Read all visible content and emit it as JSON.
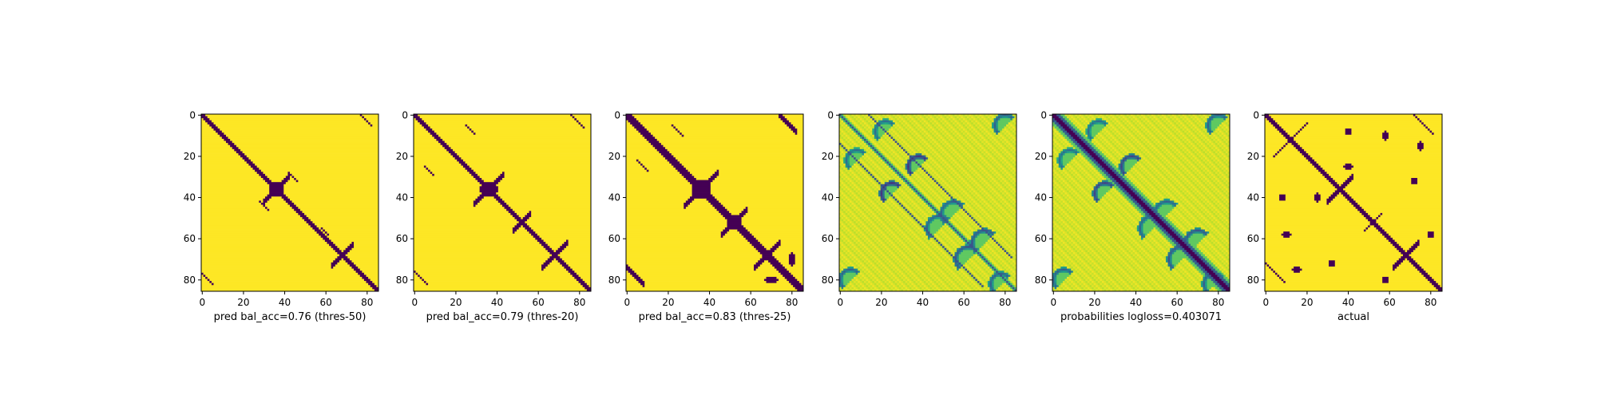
{
  "colors": {
    "background": "#ffffff",
    "zero": "#440154",
    "one": "#fde725",
    "axis": "#000000"
  },
  "chart_data": [
    {
      "type": "heatmap",
      "colormap": "viridis",
      "mode": "binary",
      "xlabel": "pred bal_acc=0.76 (thres-50)",
      "ylabel": "",
      "xlim": [
        0,
        85
      ],
      "ylim": [
        85,
        0
      ],
      "xticks": [
        0,
        20,
        40,
        60,
        80
      ],
      "yticks": [
        0,
        20,
        40,
        60,
        80
      ],
      "matrix_size": 86,
      "diagonal_band_halfwidth": 1.5,
      "features": [
        {
          "kind": "band",
          "row": 0,
          "col": 77,
          "len": 6,
          "halfwidth": 0.8
        },
        {
          "kind": "band",
          "row": 77,
          "col": 0,
          "len": 6,
          "halfwidth": 0.8
        },
        {
          "kind": "anti",
          "r": 36,
          "c": 36,
          "len": 6,
          "halfwidth": 1.0
        },
        {
          "kind": "blob",
          "r": 36,
          "c": 36,
          "rx": 3,
          "ry": 3
        },
        {
          "kind": "anti",
          "r": 68,
          "c": 68,
          "len": 5,
          "halfwidth": 1.0
        },
        {
          "kind": "band",
          "row": 42,
          "col": 28,
          "len": 5,
          "halfwidth": 0.6
        },
        {
          "kind": "band",
          "row": 28,
          "col": 42,
          "len": 5,
          "halfwidth": 0.6
        },
        {
          "kind": "band",
          "row": 55,
          "col": 58,
          "len": 4,
          "halfwidth": 0.6
        }
      ]
    },
    {
      "type": "heatmap",
      "colormap": "viridis",
      "mode": "binary",
      "xlabel": "pred bal_acc=0.79 (thres-20)",
      "ylabel": "",
      "xlim": [
        0,
        85
      ],
      "ylim": [
        85,
        0
      ],
      "xticks": [
        0,
        20,
        40,
        60,
        80
      ],
      "yticks": [
        0,
        20,
        40,
        60,
        80
      ],
      "matrix_size": 86,
      "diagonal_band_halfwidth": 1.8,
      "features": [
        {
          "kind": "band",
          "row": 0,
          "col": 76,
          "len": 7,
          "halfwidth": 0.9
        },
        {
          "kind": "band",
          "row": 76,
          "col": 0,
          "len": 7,
          "halfwidth": 0.9
        },
        {
          "kind": "anti",
          "r": 36,
          "c": 36,
          "len": 7,
          "halfwidth": 1.2
        },
        {
          "kind": "blob",
          "r": 36,
          "c": 36,
          "rx": 4,
          "ry": 3
        },
        {
          "kind": "anti",
          "r": 68,
          "c": 68,
          "len": 6,
          "halfwidth": 1.2
        },
        {
          "kind": "anti",
          "r": 52,
          "c": 52,
          "len": 4,
          "halfwidth": 1.0
        },
        {
          "kind": "band",
          "row": 5,
          "col": 25,
          "len": 5,
          "halfwidth": 0.6
        },
        {
          "kind": "band",
          "row": 25,
          "col": 5,
          "len": 5,
          "halfwidth": 0.6
        }
      ]
    },
    {
      "type": "heatmap",
      "colormap": "viridis",
      "mode": "binary",
      "xlabel": "pred bal_acc=0.83 (thres-25)",
      "ylabel": "",
      "xlim": [
        0,
        85
      ],
      "ylim": [
        85,
        0
      ],
      "xticks": [
        0,
        20,
        40,
        60,
        80
      ],
      "yticks": [
        0,
        20,
        40,
        60,
        80
      ],
      "matrix_size": 86,
      "diagonal_band_halfwidth": 2.0,
      "features": [
        {
          "kind": "band",
          "row": 0,
          "col": 74,
          "len": 9,
          "halfwidth": 1.0
        },
        {
          "kind": "band",
          "row": 74,
          "col": 0,
          "len": 9,
          "halfwidth": 1.0
        },
        {
          "kind": "anti",
          "r": 36,
          "c": 36,
          "len": 8,
          "halfwidth": 1.3
        },
        {
          "kind": "blob",
          "r": 36,
          "c": 36,
          "rx": 4,
          "ry": 4
        },
        {
          "kind": "anti",
          "r": 52,
          "c": 52,
          "len": 6,
          "halfwidth": 1.3
        },
        {
          "kind": "blob",
          "r": 52,
          "c": 52,
          "rx": 3,
          "ry": 3
        },
        {
          "kind": "anti",
          "r": 68,
          "c": 68,
          "len": 6,
          "halfwidth": 1.3
        },
        {
          "kind": "band",
          "row": 5,
          "col": 22,
          "len": 6,
          "halfwidth": 0.7
        },
        {
          "kind": "band",
          "row": 22,
          "col": 5,
          "len": 6,
          "halfwidth": 0.7
        },
        {
          "kind": "blob",
          "r": 70,
          "c": 80,
          "rx": 1,
          "ry": 3
        },
        {
          "kind": "blob",
          "r": 80,
          "c": 70,
          "rx": 3,
          "ry": 1
        }
      ]
    },
    {
      "type": "heatmap",
      "colormap": "viridis",
      "mode": "continuous",
      "xlabel": "",
      "ylabel": "",
      "xlim": [
        0,
        85
      ],
      "ylim": [
        85,
        0
      ],
      "xticks": [
        0,
        20,
        40,
        60,
        80
      ],
      "yticks": [
        0,
        20,
        40,
        60,
        80
      ],
      "matrix_size": 86,
      "diagonal": "thin",
      "features": [
        {
          "kind": "band",
          "row": 0,
          "col": 14,
          "len": 70,
          "halfwidth": 0.6,
          "value": 0.25
        },
        {
          "kind": "band",
          "row": 14,
          "col": 0,
          "len": 70,
          "halfwidth": 0.6,
          "value": 0.25
        },
        {
          "kind": "arc",
          "r": 8,
          "c": 22,
          "rad": 5,
          "value": 0.35
        },
        {
          "kind": "arc",
          "r": 22,
          "c": 8,
          "rad": 5,
          "value": 0.35
        },
        {
          "kind": "arc",
          "r": 38,
          "c": 25,
          "rad": 5,
          "value": 0.15
        },
        {
          "kind": "arc",
          "r": 25,
          "c": 38,
          "rad": 5,
          "value": 0.15
        },
        {
          "kind": "arc",
          "r": 48,
          "c": 55,
          "rad": 6,
          "value": 0.3
        },
        {
          "kind": "arc",
          "r": 55,
          "c": 48,
          "rad": 6,
          "value": 0.3
        },
        {
          "kind": "arc",
          "r": 70,
          "c": 62,
          "rad": 6,
          "value": 0.25
        },
        {
          "kind": "arc",
          "r": 62,
          "c": 70,
          "rad": 6,
          "value": 0.25
        },
        {
          "kind": "arc",
          "r": 80,
          "c": 5,
          "rad": 5,
          "value": 0.3
        },
        {
          "kind": "arc",
          "r": 5,
          "c": 80,
          "rad": 5,
          "value": 0.3
        },
        {
          "kind": "arc",
          "r": 82,
          "c": 78,
          "rad": 5,
          "value": 0.3
        }
      ]
    },
    {
      "type": "heatmap",
      "colormap": "viridis",
      "mode": "continuous",
      "xlabel": "probabilities logloss=0.403071",
      "ylabel": "",
      "xlim": [
        0,
        85
      ],
      "ylim": [
        85,
        0
      ],
      "xticks": [
        0,
        20,
        40,
        60,
        80
      ],
      "yticks": [
        0,
        20,
        40,
        60,
        80
      ],
      "matrix_size": 86,
      "diagonal": "thick",
      "features": [
        {
          "kind": "arc",
          "r": 8,
          "c": 22,
          "rad": 5,
          "value": 0.35
        },
        {
          "kind": "arc",
          "r": 22,
          "c": 8,
          "rad": 5,
          "value": 0.35
        },
        {
          "kind": "arc",
          "r": 38,
          "c": 25,
          "rad": 5,
          "value": 0.2
        },
        {
          "kind": "arc",
          "r": 25,
          "c": 38,
          "rad": 5,
          "value": 0.2
        },
        {
          "kind": "arc",
          "r": 48,
          "c": 55,
          "rad": 6,
          "value": 0.3
        },
        {
          "kind": "arc",
          "r": 55,
          "c": 48,
          "rad": 6,
          "value": 0.3
        },
        {
          "kind": "arc",
          "r": 70,
          "c": 62,
          "rad": 6,
          "value": 0.25
        },
        {
          "kind": "arc",
          "r": 62,
          "c": 70,
          "rad": 6,
          "value": 0.25
        },
        {
          "kind": "arc",
          "r": 80,
          "c": 5,
          "rad": 5,
          "value": 0.3
        },
        {
          "kind": "arc",
          "r": 5,
          "c": 80,
          "rad": 5,
          "value": 0.3
        },
        {
          "kind": "arc",
          "r": 82,
          "c": 78,
          "rad": 5,
          "value": 0.3
        }
      ]
    },
    {
      "type": "heatmap",
      "colormap": "viridis",
      "mode": "binary",
      "xlabel": "actual",
      "ylabel": "",
      "xlim": [
        0,
        85
      ],
      "ylim": [
        85,
        0
      ],
      "xticks": [
        0,
        20,
        40,
        60,
        80
      ],
      "yticks": [
        0,
        20,
        40,
        60,
        80
      ],
      "matrix_size": 86,
      "diagonal_band_halfwidth": 1.5,
      "features": [
        {
          "kind": "band",
          "row": 0,
          "col": 72,
          "len": 10,
          "halfwidth": 0.8
        },
        {
          "kind": "band",
          "row": 72,
          "col": 0,
          "len": 10,
          "halfwidth": 0.8
        },
        {
          "kind": "anti",
          "r": 12,
          "c": 12,
          "len": 8,
          "halfwidth": 0.9
        },
        {
          "kind": "anti",
          "r": 36,
          "c": 36,
          "len": 6,
          "halfwidth": 1.0
        },
        {
          "kind": "anti",
          "r": 52,
          "c": 52,
          "len": 4,
          "halfwidth": 0.9
        },
        {
          "kind": "anti",
          "r": 68,
          "c": 68,
          "len": 6,
          "halfwidth": 1.0
        },
        {
          "kind": "blob",
          "r": 10,
          "c": 58,
          "rx": 1,
          "ry": 2
        },
        {
          "kind": "blob",
          "r": 58,
          "c": 10,
          "rx": 2,
          "ry": 1
        },
        {
          "kind": "blob",
          "r": 15,
          "c": 75,
          "rx": 1,
          "ry": 2
        },
        {
          "kind": "blob",
          "r": 75,
          "c": 15,
          "rx": 2,
          "ry": 1
        },
        {
          "kind": "blob",
          "r": 8,
          "c": 40,
          "rx": 1,
          "ry": 1
        },
        {
          "kind": "blob",
          "r": 40,
          "c": 8,
          "rx": 1,
          "ry": 1
        },
        {
          "kind": "blob",
          "r": 25,
          "c": 40,
          "rx": 2,
          "ry": 1
        },
        {
          "kind": "blob",
          "r": 40,
          "c": 25,
          "rx": 1,
          "ry": 2
        },
        {
          "kind": "blob",
          "r": 58,
          "c": 80,
          "rx": 1,
          "ry": 1
        },
        {
          "kind": "blob",
          "r": 80,
          "c": 58,
          "rx": 1,
          "ry": 1
        },
        {
          "kind": "blob",
          "r": 72,
          "c": 32,
          "rx": 1,
          "ry": 1
        },
        {
          "kind": "blob",
          "r": 32,
          "c": 72,
          "rx": 1,
          "ry": 1
        }
      ]
    }
  ]
}
